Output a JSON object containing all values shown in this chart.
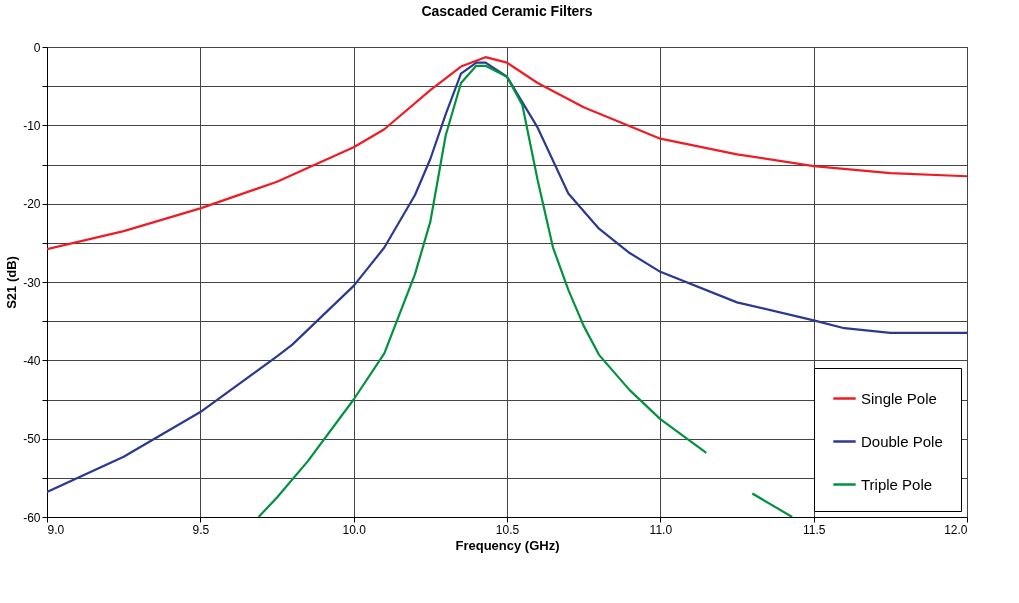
{
  "chart_data": {
    "type": "line",
    "title": "Cascaded Ceramic Filters",
    "xlabel": "Frequency  (GHz)",
    "ylabel": "S21  (dB)",
    "xlim": [
      9,
      12
    ],
    "ylim": [
      -60,
      0
    ],
    "xticks": [
      {
        "value": 9,
        "label": "9.0"
      },
      {
        "value": 9.5,
        "label": "9.5"
      },
      {
        "value": 10,
        "label": "10.0"
      },
      {
        "value": 10.5,
        "label": "10.5"
      },
      {
        "value": 11,
        "label": "11.0"
      },
      {
        "value": 11.5,
        "label": "11.5"
      },
      {
        "value": 12,
        "label": "12.0"
      }
    ],
    "yticks": [
      {
        "value": -60,
        "label": "-60"
      },
      {
        "value": -55,
        "label": null
      },
      {
        "value": -50,
        "label": "-50"
      },
      {
        "value": -45,
        "label": null
      },
      {
        "value": -40,
        "label": "-40"
      },
      {
        "value": -35,
        "label": null
      },
      {
        "value": -30,
        "label": "-30"
      },
      {
        "value": -25,
        "label": null
      },
      {
        "value": -20,
        "label": "-20"
      },
      {
        "value": -15,
        "label": null
      },
      {
        "value": -10,
        "label": "-10"
      },
      {
        "value": -5,
        "label": null
      },
      0
    ],
    "grid": true,
    "legend": "bottom right",
    "marker": "none",
    "line_style": "solid",
    "series": [
      {
        "name": "Single Pole",
        "color": "#ee1c25",
        "x": [
          9.0,
          9.25,
          9.5,
          9.75,
          10.0,
          10.1,
          10.25,
          10.35,
          10.43,
          10.5,
          10.6,
          10.75,
          11.0,
          11.25,
          11.5,
          11.75,
          12.0
        ],
        "values": [
          -25.8,
          -23.5,
          -20.6,
          -17.2,
          -12.8,
          -10.5,
          -5.5,
          -2.5,
          -1.3,
          -2.0,
          -4.6,
          -7.7,
          -11.7,
          -13.7,
          -15.2,
          -16.1,
          -16.5
        ]
      },
      {
        "name": "Double Pole",
        "color": "#2b3990",
        "x": [
          9.0,
          9.25,
          9.5,
          9.75,
          9.8,
          10.0,
          10.1,
          10.2,
          10.25,
          10.3,
          10.35,
          10.4,
          10.43,
          10.5,
          10.6,
          10.7,
          10.8,
          10.9,
          11.0,
          11.25,
          11.5,
          11.6,
          11.75,
          12.0
        ],
        "values": [
          -56.8,
          -52.3,
          -46.6,
          -39.5,
          -38.0,
          -30.5,
          -25.6,
          -18.9,
          -14.3,
          -8.6,
          -3.4,
          -2.0,
          -2.0,
          -3.8,
          -10.3,
          -18.7,
          -23.2,
          -26.3,
          -28.7,
          -32.6,
          -34.9,
          -35.9,
          -36.5,
          -36.5
        ]
      },
      {
        "name": "Triple Pole",
        "color": "#00923f",
        "x": [
          9.69,
          9.75,
          9.85,
          10.0,
          10.1,
          10.2,
          10.25,
          10.3,
          10.35,
          10.4,
          10.43,
          10.5,
          10.55,
          10.6,
          10.65,
          10.7,
          10.75,
          10.8,
          10.9,
          11.0,
          11.15,
          11.25,
          11.3,
          11.43
        ],
        "values": [
          -60.0,
          -57.5,
          -52.9,
          -45.0,
          -39.1,
          -29.0,
          -22.3,
          -11.3,
          -4.6,
          -2.4,
          -2.4,
          -3.8,
          -7.4,
          -17.0,
          -25.6,
          -31.0,
          -35.6,
          -39.3,
          -43.8,
          -47.5,
          -51.8,
          null,
          -57.0,
          -60.0
        ]
      }
    ]
  }
}
